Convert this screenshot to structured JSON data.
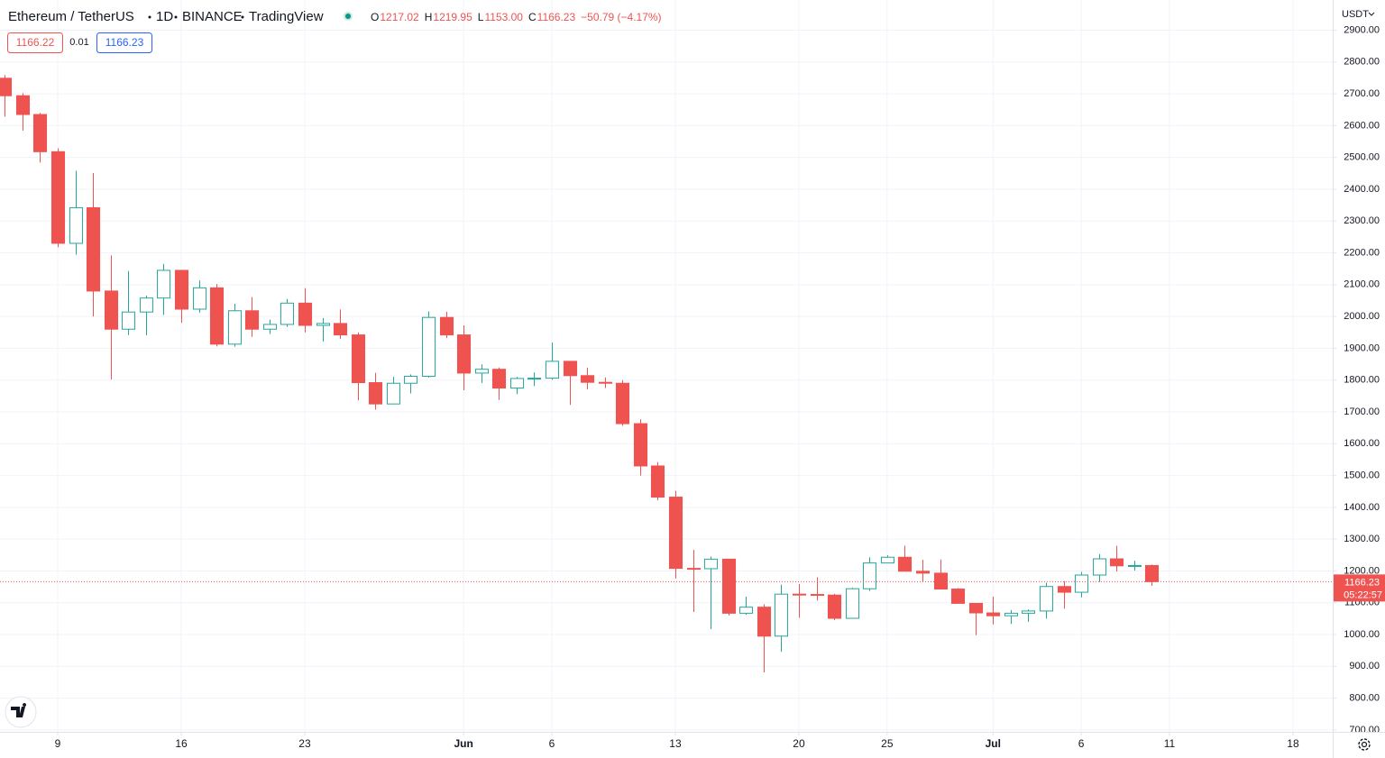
{
  "chart_data": {
    "type": "candlestick",
    "header": {
      "symbol": "Ethereum / TetherUS",
      "interval": "1D",
      "exchange": "BINANCE",
      "source": "TradingView",
      "ohlc": [
        {
          "label": "O",
          "value": "1217.02"
        },
        {
          "label": "H",
          "value": "1219.95"
        },
        {
          "label": "L",
          "value": "1153.00"
        },
        {
          "label": "C",
          "value": "1166.23"
        }
      ],
      "change": "−50.79 (−4.17%)"
    },
    "order_boxes": {
      "sell": "1166.22",
      "spread": "0.01",
      "buy": "1166.23"
    },
    "currency": "USDT",
    "last_price": 1166.23,
    "countdown": "05:22:57",
    "up_color": "#26a69a",
    "down_color": "#ef5350",
    "grid": true,
    "open": [
      2749,
      2694,
      2635,
      2518,
      2230,
      2342,
      2080,
      1960,
      2014,
      2058,
      2145,
      2023,
      2090,
      1913,
      2018,
      1960,
      1975,
      2042,
      1972,
      1978,
      1942,
      1792,
      1725,
      1790,
      1812,
      1997,
      1942,
      1822,
      1834,
      1775,
      1805,
      1806,
      1859,
      1814,
      1793,
      1790,
      1663,
      1530,
      1432,
      1208,
      1207,
      1237,
      1067,
      1086,
      995,
      1127,
      1126,
      1124,
      1051,
      1144,
      1225,
      1243,
      1199,
      1193,
      1143,
      1098,
      1068,
      1059,
      1067,
      1074,
      1151,
      1133,
      1187,
      1238,
      1216,
      1217.02
    ],
    "high": [
      2759,
      2702,
      2640,
      2529,
      2458,
      2451,
      2192,
      2143,
      2066,
      2165,
      2145,
      2113,
      2102,
      2040,
      2061,
      1990,
      2055,
      2089,
      1995,
      2022,
      1950,
      1823,
      1810,
      1818,
      2016,
      2015,
      1972,
      1849,
      1840,
      1810,
      1824,
      1918,
      1859,
      1839,
      1808,
      1800,
      1677,
      1542,
      1452,
      1266,
      1245,
      1237,
      1119,
      1095,
      1157,
      1159,
      1180,
      1128,
      1147,
      1243,
      1249,
      1279,
      1235,
      1236,
      1146,
      1098,
      1119,
      1077,
      1079,
      1163,
      1168,
      1197,
      1253,
      1279,
      1232,
      1219.95
    ],
    "low": [
      2628,
      2584,
      2484,
      2218,
      2194,
      2000,
      1802,
      1942,
      1941,
      2005,
      1980,
      2012,
      1906,
      1905,
      1936,
      1945,
      1967,
      1950,
      1921,
      1930,
      1736,
      1707,
      1725,
      1758,
      1808,
      1932,
      1768,
      1791,
      1738,
      1756,
      1781,
      1801,
      1722,
      1771,
      1775,
      1656,
      1500,
      1422,
      1176,
      1071,
      1017,
      1060,
      1062,
      881,
      946,
      1053,
      1107,
      1045,
      1050,
      1137,
      1225,
      1199,
      1167,
      1142,
      1098,
      998,
      1032,
      1033,
      1040,
      1050,
      1081,
      1117,
      1165,
      1198,
      1201,
      1153
    ],
    "close": [
      2694,
      2635,
      2518,
      2230,
      2342,
      2080,
      1960,
      2014,
      2058,
      2145,
      2023,
      2090,
      1913,
      2018,
      1960,
      1975,
      2042,
      1972,
      1978,
      1942,
      1792,
      1725,
      1790,
      1812,
      1997,
      1942,
      1822,
      1834,
      1775,
      1805,
      1806,
      1859,
      1814,
      1793,
      1790,
      1663,
      1530,
      1432,
      1208,
      1207,
      1237,
      1067,
      1086,
      995,
      1127,
      1126,
      1124,
      1051,
      1144,
      1225,
      1243,
      1199,
      1193,
      1143,
      1098,
      1068,
      1059,
      1067,
      1074,
      1151,
      1133,
      1187,
      1238,
      1216,
      1217,
      1166.23
    ],
    "xlim": [
      -0.27,
      75.25
    ],
    "xticks": [
      {
        "value": 3,
        "label": "9"
      },
      {
        "value": 10,
        "label": "16"
      },
      {
        "value": 17,
        "label": "23"
      },
      {
        "value": 26,
        "label": "Jun"
      },
      {
        "value": 31,
        "label": "6"
      },
      {
        "value": 38,
        "label": "13"
      },
      {
        "value": 45,
        "label": "20"
      },
      {
        "value": 50,
        "label": "25"
      },
      {
        "value": 56,
        "label": "Jul"
      },
      {
        "value": 61,
        "label": "6"
      },
      {
        "value": 66,
        "label": "11"
      },
      {
        "value": 73,
        "label": "18"
      }
    ],
    "ylim": [
      694,
      2995
    ],
    "yticks": [
      {
        "value": 700,
        "label": "700.00"
      },
      {
        "value": 800,
        "label": "800.00"
      },
      {
        "value": 900,
        "label": "900.00"
      },
      {
        "value": 1000,
        "label": "1000.00"
      },
      {
        "value": 1100,
        "label": "1100.00"
      },
      {
        "value": 1200,
        "label": "1200.00"
      },
      {
        "value": 1300,
        "label": "1300.00"
      },
      {
        "value": 1400,
        "label": "1400.00"
      },
      {
        "value": 1500,
        "label": "1500.00"
      },
      {
        "value": 1600,
        "label": "1600.00"
      },
      {
        "value": 1700,
        "label": "1700.00"
      },
      {
        "value": 1800,
        "label": "1800.00"
      },
      {
        "value": 1900,
        "label": "1900.00"
      },
      {
        "value": 2000,
        "label": "2000.00"
      },
      {
        "value": 2100,
        "label": "2100.00"
      },
      {
        "value": 2200,
        "label": "2200.00"
      },
      {
        "value": 2300,
        "label": "2300.00"
      },
      {
        "value": 2400,
        "label": "2400.00"
      },
      {
        "value": 2500,
        "label": "2500.00"
      },
      {
        "value": 2600,
        "label": "2600.00"
      },
      {
        "value": 2700,
        "label": "2700.00"
      },
      {
        "value": 2800,
        "label": "2800.00"
      },
      {
        "value": 2900,
        "label": "2900.00"
      }
    ]
  }
}
